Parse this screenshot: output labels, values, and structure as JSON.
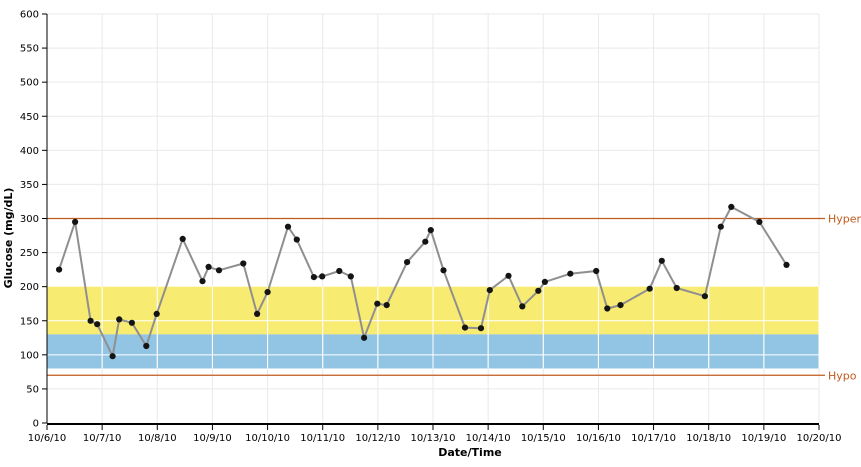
{
  "chart_data": {
    "type": "line",
    "title": "",
    "xlabel": "Date/Time",
    "ylabel": "Glucose (mg/dL)",
    "ylim": [
      0,
      600
    ],
    "y_ticks": [
      0,
      50,
      100,
      150,
      200,
      250,
      300,
      350,
      400,
      450,
      500,
      550,
      600
    ],
    "x_tick_labels": [
      "10/6/10",
      "10/7/10",
      "10/8/10",
      "10/9/10",
      "10/10/10",
      "10/11/10",
      "10/12/10",
      "10/13/10",
      "10/14/10",
      "10/15/10",
      "10/16/10",
      "10/17/10",
      "10/18/10",
      "10/19/10",
      "10/20/10"
    ],
    "x_range_days": [
      0,
      14
    ],
    "grid": true,
    "legend_position": "none",
    "bands": [
      {
        "name": "after-meal-target-band",
        "from": 130,
        "to": 200,
        "color": "#f8eb71"
      },
      {
        "name": "before-meal-target-band",
        "from": 80,
        "to": 130,
        "color": "#92c4e4"
      }
    ],
    "thresholds": [
      {
        "label": "Hyper",
        "value": 300,
        "color": "#c05a1d"
      },
      {
        "label": "Hypo",
        "value": 70,
        "color": "#c05a1d"
      }
    ],
    "series": [
      {
        "name": "glucose-readings",
        "line_color": "#8f8f8f",
        "marker_color": "#141414",
        "points": [
          [
            0.22,
            225
          ],
          [
            0.51,
            295
          ],
          [
            0.79,
            150
          ],
          [
            0.91,
            145
          ],
          [
            1.19,
            98
          ],
          [
            1.31,
            152
          ],
          [
            1.54,
            147
          ],
          [
            1.8,
            113
          ],
          [
            1.99,
            160
          ],
          [
            2.46,
            270
          ],
          [
            2.82,
            208
          ],
          [
            2.93,
            229
          ],
          [
            3.12,
            224
          ],
          [
            3.56,
            234
          ],
          [
            3.81,
            160
          ],
          [
            4.0,
            192
          ],
          [
            4.37,
            288
          ],
          [
            4.53,
            269
          ],
          [
            4.84,
            214
          ],
          [
            4.99,
            215
          ],
          [
            5.3,
            223
          ],
          [
            5.51,
            215
          ],
          [
            5.75,
            125
          ],
          [
            5.99,
            175
          ],
          [
            6.16,
            173
          ],
          [
            6.53,
            236
          ],
          [
            6.86,
            266
          ],
          [
            6.96,
            283
          ],
          [
            7.19,
            224
          ],
          [
            7.58,
            140
          ],
          [
            7.87,
            139
          ],
          [
            8.03,
            195
          ],
          [
            8.37,
            216
          ],
          [
            8.62,
            171
          ],
          [
            8.91,
            194
          ],
          [
            9.03,
            207
          ],
          [
            9.49,
            219
          ],
          [
            9.96,
            223
          ],
          [
            10.16,
            168
          ],
          [
            10.4,
            173
          ],
          [
            10.93,
            197
          ],
          [
            11.15,
            238
          ],
          [
            11.42,
            198
          ],
          [
            11.93,
            186
          ],
          [
            12.22,
            288
          ],
          [
            12.41,
            317
          ],
          [
            12.92,
            295
          ],
          [
            13.41,
            232
          ]
        ]
      }
    ]
  },
  "colors": {
    "grid_gray": "#e9e9e9",
    "grid_white": "#ffffff",
    "axis": "#000000",
    "tick_text": "#000000",
    "background": "#ffffff"
  }
}
